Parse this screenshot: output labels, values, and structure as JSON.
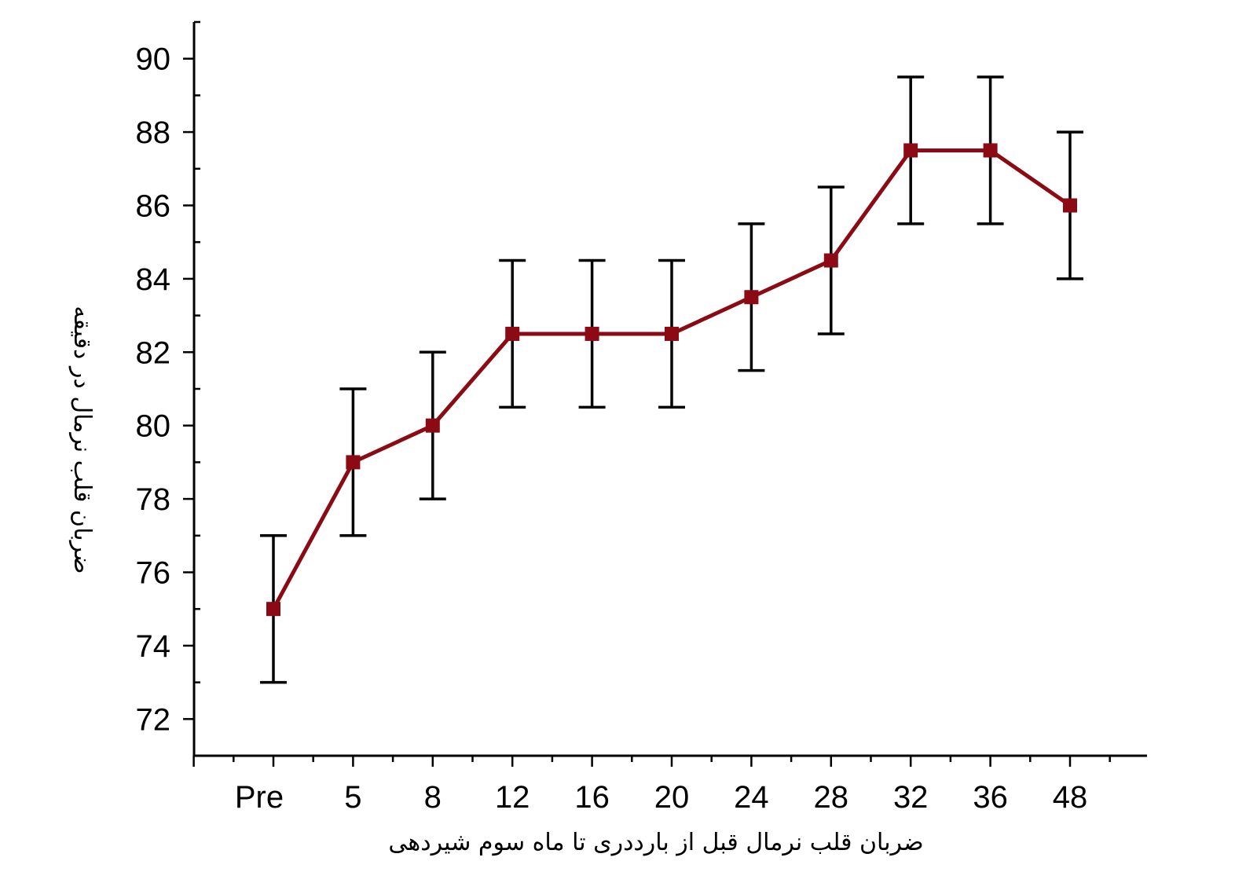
{
  "chart_data": {
    "type": "line",
    "title": "",
    "xlabel": "ضربان قلب نرمال قبل از بارددری تا ماه سوم شیردهی",
    "ylabel": "ضربان قلب نرمال در دقیقه",
    "categories": [
      "Pre",
      "5",
      "8",
      "12",
      "16",
      "20",
      "24",
      "28",
      "32",
      "36",
      "48"
    ],
    "ylim": [
      71,
      91
    ],
    "yticks": [
      "72",
      "74",
      "76",
      "78",
      "80",
      "82",
      "84",
      "86",
      "88",
      "90"
    ],
    "grid": false,
    "legend": "none",
    "series": [
      {
        "values": [
          75,
          79,
          80,
          82.5,
          82.5,
          82.5,
          83.5,
          84.5,
          87.5,
          87.5,
          86
        ],
        "error": [
          2,
          2,
          2,
          2,
          2,
          2,
          2,
          2,
          2,
          2,
          2
        ],
        "color": "#8b0a14",
        "marker": "square"
      }
    ],
    "errorbar_color": "#000000"
  }
}
